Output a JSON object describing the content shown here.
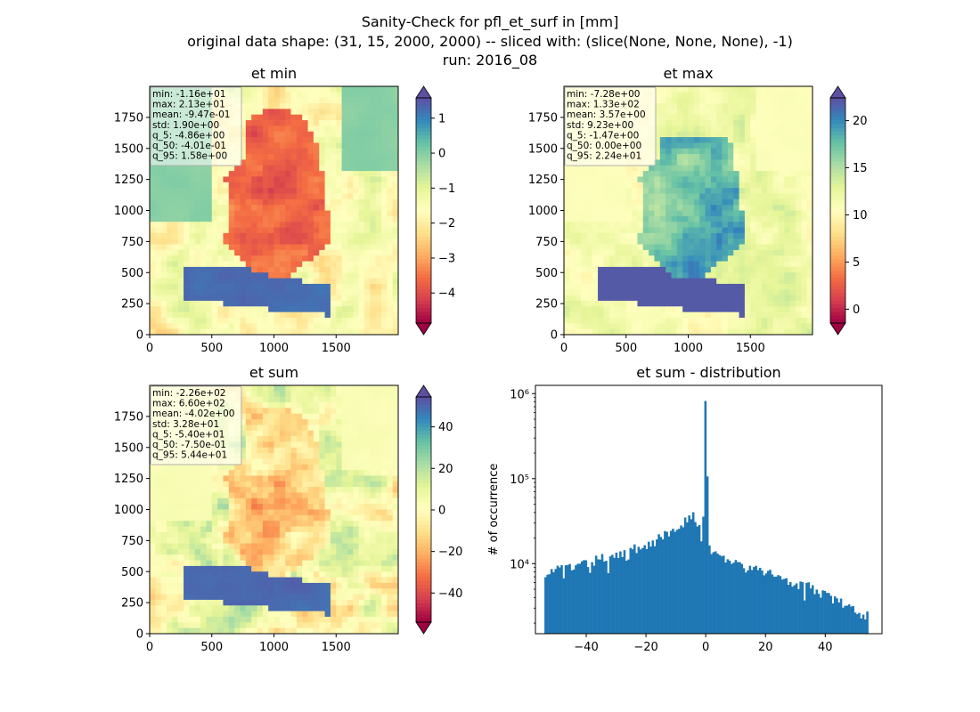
{
  "figure": {
    "title_lines": [
      "Sanity-Check for pfl_et_surf in [mm]",
      "original data shape: (31, 15, 2000, 2000) -- sliced with: (slice(None, None, None), -1)",
      "run: 2016_08"
    ]
  },
  "maps": [
    {
      "title": "et min",
      "stats": [
        "min: -1.16e+01",
        "max: 2.13e+01",
        "mean: -9.47e-01",
        "std: 1.90e+00",
        "q_5: -4.86e+00",
        "q_50: -4.01e-01",
        "q_95: 1.58e+00"
      ],
      "xticks": [
        "0",
        "500",
        "1000",
        "1500"
      ],
      "yticks": [
        "0",
        "250",
        "500",
        "750",
        "1000",
        "1250",
        "1500",
        "1750"
      ],
      "colorbar": {
        "vmin": -4.86,
        "vmax": 1.58,
        "ticks": [
          1,
          0,
          -1,
          -2,
          -3,
          -4
        ],
        "labels": [
          "1",
          "0",
          "−1",
          "−2",
          "−3",
          "−4"
        ]
      }
    },
    {
      "title": "et max",
      "stats": [
        "min: -7.28e+00",
        "max: 1.33e+02",
        "mean: 3.57e+00",
        "std: 9.23e+00",
        "q_5: -1.47e+00",
        "q_50: 0.00e+00",
        "q_95: 2.24e+01"
      ],
      "xticks": [
        "0",
        "500",
        "1000",
        "1500"
      ],
      "yticks": [
        "0",
        "250",
        "500",
        "750",
        "1000",
        "1250",
        "1500",
        "1750"
      ],
      "colorbar": {
        "vmin": -1.47,
        "vmax": 22.4,
        "ticks": [
          20,
          15,
          10,
          5,
          0
        ],
        "labels": [
          "20",
          "15",
          "10",
          "5",
          "0"
        ]
      }
    },
    {
      "title": "et sum",
      "stats": [
        "min: -2.26e+02",
        "max: 6.60e+02",
        "mean: -4.02e+00",
        "std: 3.28e+01",
        "q_5: -5.40e+01",
        "q_50: -7.50e-01",
        "q_95: 5.44e+01"
      ],
      "xticks": [
        "0",
        "500",
        "1000",
        "1500"
      ],
      "yticks": [
        "0",
        "250",
        "500",
        "750",
        "1000",
        "1250",
        "1500",
        "1750"
      ],
      "colorbar": {
        "vmin": -54,
        "vmax": 54.4,
        "ticks": [
          40,
          20,
          0,
          -20,
          -40
        ],
        "labels": [
          "40",
          "20",
          "0",
          "−20",
          "−40"
        ]
      }
    }
  ],
  "colormap": "Spectral",
  "chart_data": {
    "type": "bar",
    "title": "et sum - distribution",
    "xlabel": "",
    "ylabel": "# of occurrence",
    "yscale": "log",
    "xlim": [
      -57,
      59
    ],
    "ylim": [
      1500,
      1250000
    ],
    "xticks": [
      -40,
      -20,
      0,
      20,
      40
    ],
    "xtick_labels": [
      "−40",
      "−20",
      "0",
      "20",
      "40"
    ],
    "yticks": [
      10000,
      100000,
      1000000
    ],
    "ytick_labels": [
      "10⁴",
      "10⁵",
      "10⁶"
    ],
    "bins": [
      -54,
      54.4
    ],
    "bin_count": 160,
    "color": "#1f77b4",
    "profile": {
      "x": [
        -54,
        -50,
        -45,
        -40,
        -35,
        -30,
        -25,
        -20,
        -15,
        -10,
        -7,
        -4,
        -2,
        -1,
        0,
        1,
        2,
        5,
        10,
        15,
        20,
        25,
        30,
        35,
        40,
        45,
        50,
        54
      ],
      "y": [
        8000,
        8500,
        9000,
        9800,
        11500,
        13000,
        14500,
        16500,
        20000,
        26000,
        32000,
        40000,
        25000,
        15000,
        820000,
        17000,
        14500,
        12000,
        10000,
        8500,
        8000,
        7000,
        6000,
        5200,
        4300,
        3500,
        2700,
        2500
      ]
    }
  }
}
